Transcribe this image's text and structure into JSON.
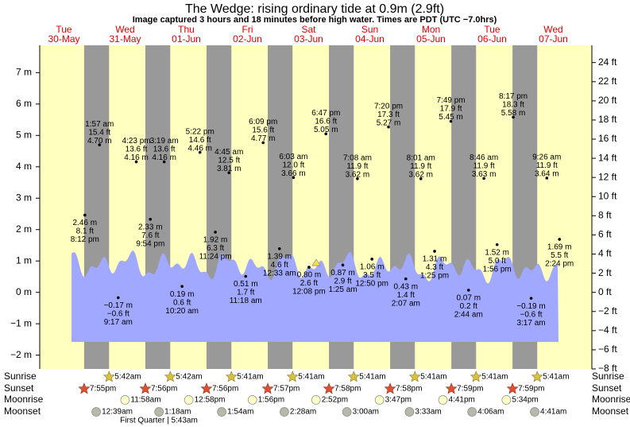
{
  "chart_data": {
    "type": "tide",
    "title": "The Wedge: rising  ordinary tide at 0.9m (2.9ft)",
    "subtitle": "Image captured 3 hours and 18 minutes before high water. Times are PDT (UTC −7.0hrs)",
    "ylim": [
      -2.44,
      7.87
    ],
    "yticks": [
      {
        "value": -2,
        "label": "−2 m"
      },
      {
        "value": -1,
        "label": "−1 m"
      },
      {
        "value": 0,
        "label": "0 m"
      },
      {
        "value": 1,
        "label": "1 m"
      },
      {
        "value": 2,
        "label": "2 m"
      },
      {
        "value": 3,
        "label": "3 m"
      },
      {
        "value": 4,
        "label": "4 m"
      },
      {
        "value": 5,
        "label": "5 m"
      },
      {
        "value": 6,
        "label": "6 m"
      },
      {
        "value": 7,
        "label": "7 m"
      }
    ],
    "y2lim": [
      -8,
      25.8
    ],
    "y2ticks": [
      {
        "value": -8,
        "label": "−8 ft"
      },
      {
        "value": -6,
        "label": "−6 ft"
      },
      {
        "value": -4,
        "label": "−4 ft"
      },
      {
        "value": -2,
        "label": "−2 ft"
      },
      {
        "value": 0,
        "label": "0 ft"
      },
      {
        "value": 2,
        "label": "2 ft"
      },
      {
        "value": 4,
        "label": "4 ft"
      },
      {
        "value": 6,
        "label": "6 ft"
      },
      {
        "value": 8,
        "label": "8 ft"
      },
      {
        "value": 10,
        "label": "10 ft"
      },
      {
        "value": 12,
        "label": "12 ft"
      },
      {
        "value": 14,
        "label": "14 ft"
      },
      {
        "value": 16,
        "label": "16 ft"
      },
      {
        "value": 18,
        "label": "18 ft"
      },
      {
        "value": 20,
        "label": "20 ft"
      },
      {
        "value": 22,
        "label": "22 ft"
      },
      {
        "value": 24,
        "label": "24 ft"
      }
    ],
    "row_labels": [
      "Sunrise",
      "Sunset",
      "Moonrise",
      "Moonset"
    ],
    "moon_phase": "First Quarter | 5:43am",
    "days": [
      {
        "weekday": "Tue",
        "date": "30-May",
        "sunset": "7:55pm",
        "tides": [
          {
            "time": "8:12 pm",
            "ft": 8.1,
            "ft_label": "8.1 ft",
            "m": 2.46,
            "m_label": "2.46 m"
          }
        ]
      },
      {
        "weekday": "Wed",
        "date": "31-May",
        "sunrise": "5:42am",
        "sunset": "7:56pm",
        "moonrise": "11:58am",
        "moonset": "12:39am",
        "tides": [
          {
            "time": "1:57 am",
            "ft": 15.4,
            "ft_label": "15.4 ft",
            "m": 4.7,
            "m_label": "4.70 m"
          },
          {
            "time": "9:17 am",
            "ft": -0.6,
            "ft_label": "−0.6 ft",
            "m": -0.17,
            "m_label": "−0.17 m"
          },
          {
            "time": "4:23 pm",
            "ft": 13.6,
            "ft_label": "13.6 ft",
            "m": 4.16,
            "m_label": "4.16 m"
          },
          {
            "time": "9:54 pm",
            "ft": 7.6,
            "ft_label": "7.6 ft",
            "m": 2.33,
            "m_label": "2.33 m"
          }
        ]
      },
      {
        "weekday": "Thu",
        "date": "01-Jun",
        "sunrise": "5:42am",
        "sunset": "7:56pm",
        "moonrise": "12:58pm",
        "moonset": "1:18am",
        "tides": [
          {
            "time": "3:19 am",
            "ft": 13.6,
            "ft_label": "13.6 ft",
            "m": 4.16,
            "m_label": "4.16 m"
          },
          {
            "time": "10:20 am",
            "ft": 0.6,
            "ft_label": "0.6 ft",
            "m": 0.19,
            "m_label": "0.19 m"
          },
          {
            "time": "5:22 pm",
            "ft": 14.6,
            "ft_label": "14.6 ft",
            "m": 4.46,
            "m_label": "4.46 m"
          },
          {
            "time": "11:24 pm",
            "ft": 6.3,
            "ft_label": "6.3 ft",
            "m": 1.92,
            "m_label": "1.92 m"
          }
        ]
      },
      {
        "weekday": "Fri",
        "date": "02-Jun",
        "sunrise": "5:41am",
        "sunset": "7:57pm",
        "moonrise": "1:56pm",
        "moonset": "1:54am",
        "tides": [
          {
            "time": "4:45 am",
            "ft": 12.5,
            "ft_label": "12.5 ft",
            "m": 3.81,
            "m_label": "3.81 m"
          },
          {
            "time": "11:18 am",
            "ft": 1.7,
            "ft_label": "1.7 ft",
            "m": 0.51,
            "m_label": "0.51 m"
          },
          {
            "time": "6:09 pm",
            "ft": 15.6,
            "ft_label": "15.6 ft",
            "m": 4.77,
            "m_label": "4.77 m"
          }
        ]
      },
      {
        "weekday": "Sat",
        "date": "03-Jun",
        "sunrise": "5:41am",
        "sunset": "7:58pm",
        "moonrise": "2:52pm",
        "moonset": "2:28am",
        "tides": [
          {
            "time": "12:33 am",
            "ft": 4.6,
            "ft_label": "4.6 ft",
            "m": 1.39,
            "m_label": "1.39 m"
          },
          {
            "time": "6:03 am",
            "ft": 12.0,
            "ft_label": "12.0 ft",
            "m": 3.66,
            "m_label": "3.66 m"
          },
          {
            "time": "12:08 pm",
            "ft": 2.6,
            "ft_label": "2.6 ft",
            "m": 0.8,
            "m_label": "0.80 m"
          },
          {
            "time": "6:47 pm",
            "ft": 16.6,
            "ft_label": "16.6 ft",
            "m": 5.05,
            "m_label": "5.05 m"
          }
        ]
      },
      {
        "weekday": "Sun",
        "date": "04-Jun",
        "sunrise": "5:41am",
        "sunset": "7:58pm",
        "moonrise": "3:47pm",
        "moonset": "3:00am",
        "tides": [
          {
            "time": "1:25 am",
            "ft": 2.9,
            "ft_label": "2.9 ft",
            "m": 0.87,
            "m_label": "0.87 m"
          },
          {
            "time": "7:08 am",
            "ft": 11.9,
            "ft_label": "11.9 ft",
            "m": 3.62,
            "m_label": "3.62 m"
          },
          {
            "time": "12:50 pm",
            "ft": 3.5,
            "ft_label": "3.5 ft",
            "m": 1.06,
            "m_label": "1.06 m"
          },
          {
            "time": "7:20 pm",
            "ft": 17.3,
            "ft_label": "17.3 ft",
            "m": 5.27,
            "m_label": "5.27 m"
          }
        ]
      },
      {
        "weekday": "Mon",
        "date": "05-Jun",
        "sunrise": "5:41am",
        "sunset": "7:59pm",
        "moonrise": "4:41pm",
        "moonset": "3:33am",
        "tides": [
          {
            "time": "2:07 am",
            "ft": 1.4,
            "ft_label": "1.4 ft",
            "m": 0.43,
            "m_label": "0.43 m"
          },
          {
            "time": "8:01 am",
            "ft": 11.9,
            "ft_label": "11.9 ft",
            "m": 3.62,
            "m_label": "3.62 m"
          },
          {
            "time": "1:25 pm",
            "ft": 4.3,
            "ft_label": "4.3 ft",
            "m": 1.31,
            "m_label": "1.31 m"
          },
          {
            "time": "7:49 pm",
            "ft": 17.9,
            "ft_label": "17.9 ft",
            "m": 5.45,
            "m_label": "5.45 m"
          }
        ]
      },
      {
        "weekday": "Tue",
        "date": "06-Jun",
        "sunrise": "5:41am",
        "sunset": "7:59pm",
        "moonrise": "5:34pm",
        "moonset": "4:06am",
        "tides": [
          {
            "time": "2:44 am",
            "ft": 0.2,
            "ft_label": "0.2 ft",
            "m": 0.07,
            "m_label": "0.07 m"
          },
          {
            "time": "8:46 am",
            "ft": 11.9,
            "ft_label": "11.9 ft",
            "m": 3.63,
            "m_label": "3.63 m"
          },
          {
            "time": "1:56 pm",
            "ft": 5.0,
            "ft_label": "5.0 ft",
            "m": 1.52,
            "m_label": "1.52 m"
          },
          {
            "time": "8:17 pm",
            "ft": 18.3,
            "ft_label": "18.3 ft",
            "m": 5.58,
            "m_label": "5.58 m"
          }
        ]
      },
      {
        "weekday": "Wed",
        "date": "07-Jun",
        "sunrise": "5:41am",
        "moonset": "4:41am",
        "tides": [
          {
            "time": "3:17 am",
            "ft": -0.6,
            "ft_label": "−0.6 ft",
            "m": -0.19,
            "m_label": "−0.19 m"
          },
          {
            "time": "9:26 am",
            "ft": 11.9,
            "ft_label": "11.9 ft",
            "m": 3.64,
            "m_label": "3.64 m"
          },
          {
            "time": "2:24 pm",
            "ft": 5.5,
            "ft_label": "5.5 ft",
            "m": 1.69,
            "m_label": "1.69 m"
          }
        ]
      }
    ]
  }
}
